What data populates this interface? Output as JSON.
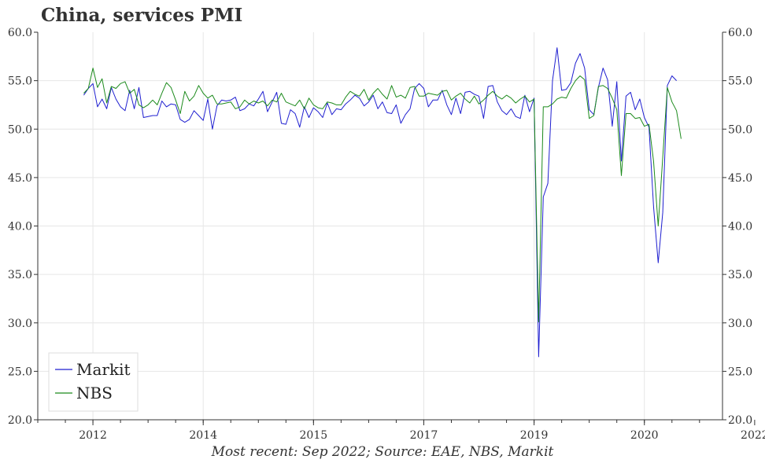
{
  "title": "China, services PMI",
  "footnote": "Most recent: Sep 2022; Source: EAE, NBS, Markit",
  "chart_data": {
    "type": "line",
    "title": "China, services PMI",
    "xlabel": "",
    "ylabel": "",
    "ylim": [
      20,
      60
    ],
    "xlim": [
      "2011-01",
      "2023-06"
    ],
    "yticks": [
      "20.0",
      "25.0",
      "30.0",
      "35.0",
      "40.0",
      "45.0",
      "50.0",
      "55.0",
      "60.0"
    ],
    "xticks": [
      "2012",
      "2014",
      "2015",
      "2017",
      "2019",
      "2020",
      "2022"
    ],
    "xtick_dates": [
      "2012-01",
      "2014-01",
      "2016-01",
      "2018-01",
      "2020-01",
      "2022-01",
      "2024-01"
    ],
    "grid": true,
    "legend": "bottom-left",
    "series": [
      {
        "name": "Markit",
        "color": "#1f1fd0",
        "start": "2011-11",
        "values": [
          53.5,
          54.2,
          54.7,
          52.3,
          53.1,
          52.1,
          54.3,
          53.1,
          52.3,
          51.9,
          54.0,
          52.1,
          54.3,
          51.2,
          51.3,
          51.4,
          51.4,
          52.9,
          52.3,
          52.6,
          52.5,
          51.0,
          50.7,
          51.0,
          51.9,
          51.4,
          50.9,
          53.1,
          50.0,
          52.4,
          53.0,
          52.9,
          53.0,
          53.3,
          51.9,
          52.1,
          52.6,
          52.4,
          53.1,
          53.9,
          51.8,
          52.8,
          53.8,
          50.6,
          50.5,
          52.0,
          51.6,
          50.2,
          52.3,
          51.2,
          52.2,
          51.8,
          51.2,
          52.7,
          51.5,
          52.1,
          52.0,
          52.6,
          53.0,
          53.5,
          53.2,
          52.4,
          52.8,
          53.5,
          52.1,
          52.8,
          51.7,
          51.6,
          52.5,
          50.6,
          51.5,
          52.1,
          54.2,
          54.7,
          54.2,
          52.3,
          53.0,
          53.0,
          54.0,
          52.5,
          51.5,
          53.2,
          51.6,
          53.8,
          53.9,
          53.6,
          53.4,
          51.1,
          54.4,
          54.5,
          52.8,
          51.9,
          51.5,
          52.1,
          51.3,
          51.1,
          53.5,
          51.8,
          53.2,
          26.5,
          43.0,
          44.4,
          55.0,
          58.4,
          54.0,
          54.1,
          54.8,
          56.8,
          57.8,
          56.3,
          52.0,
          51.5,
          54.3,
          56.3,
          55.1,
          50.3,
          54.9,
          46.7,
          53.4,
          53.8,
          52.0,
          53.1,
          51.2,
          50.2,
          42.0,
          36.2,
          41.4,
          54.5,
          55.5,
          55.0
        ]
      },
      {
        "name": "NBS",
        "color": "#1c8a1c",
        "start": "2011-11",
        "values": [
          53.7,
          54.2,
          56.3,
          54.3,
          55.2,
          52.7,
          54.4,
          54.2,
          54.7,
          54.9,
          53.7,
          54.1,
          52.5,
          52.2,
          52.5,
          53.0,
          52.5,
          53.7,
          54.8,
          54.3,
          53.0,
          51.6,
          53.9,
          52.9,
          53.4,
          54.5,
          53.7,
          53.2,
          53.5,
          52.6,
          52.6,
          52.7,
          52.8,
          52.1,
          52.3,
          53.0,
          52.6,
          52.9,
          52.7,
          52.9,
          52.4,
          53.0,
          52.8,
          53.7,
          52.8,
          52.6,
          52.4,
          53.0,
          52.1,
          53.2,
          52.5,
          52.2,
          52.1,
          52.8,
          52.7,
          52.5,
          52.5,
          53.3,
          53.9,
          53.6,
          53.4,
          54.1,
          53.0,
          53.7,
          54.2,
          53.6,
          53.1,
          54.5,
          53.3,
          53.5,
          53.2,
          54.3,
          54.4,
          53.4,
          53.4,
          53.7,
          53.6,
          53.5,
          53.9,
          54.0,
          53.0,
          53.4,
          53.7,
          53.1,
          52.7,
          53.4,
          52.6,
          53.0,
          53.5,
          53.9,
          53.4,
          53.1,
          53.5,
          53.2,
          52.7,
          53.1,
          53.4,
          52.8,
          53.1,
          30.1,
          52.3,
          52.3,
          52.6,
          53.1,
          53.3,
          53.2,
          54.2,
          55.0,
          55.5,
          55.1,
          51.1,
          51.4,
          54.4,
          54.5,
          54.2,
          53.2,
          52.0,
          45.2,
          51.6,
          51.6,
          51.1,
          51.2,
          50.3,
          50.5,
          46.7,
          40.0,
          47.1,
          54.3,
          52.8,
          51.9,
          49.0
        ]
      }
    ]
  }
}
